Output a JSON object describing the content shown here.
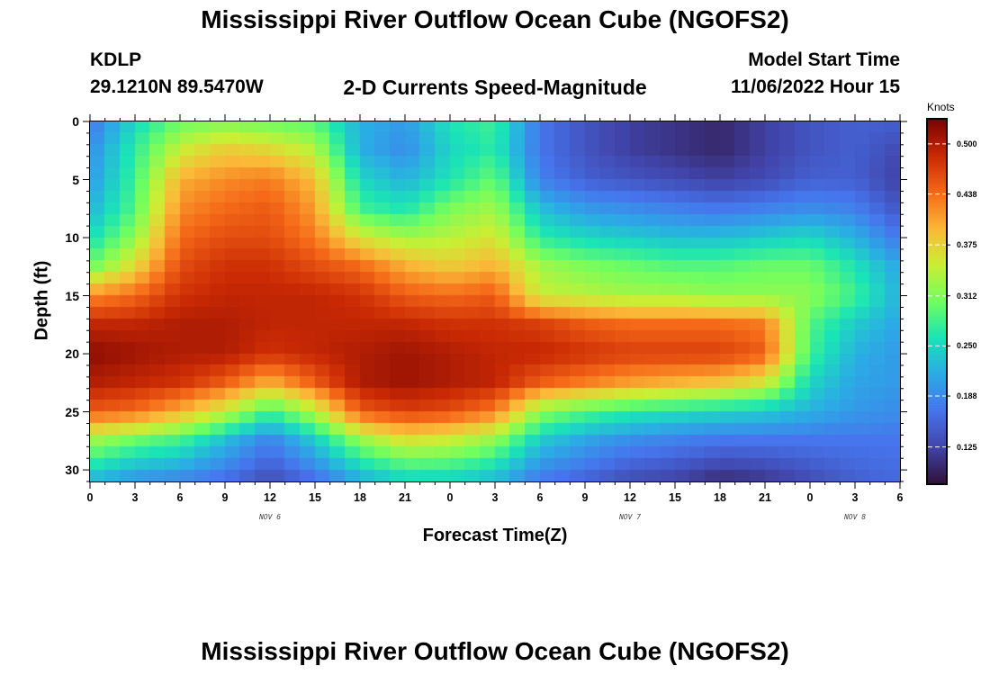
{
  "titles": {
    "top": "Mississippi River Outflow Ocean Cube (NGOFS2)",
    "bottom": "Mississippi River Outflow Ocean Cube (NGOFS2)"
  },
  "header": {
    "station": "KDLP",
    "location": "29.1210N  89.5470W",
    "subtitle": "2-D Currents Speed-Magnitude",
    "model_label": "Model Start Time",
    "model_time": "11/06/2022 Hour 15"
  },
  "chart_data": {
    "type": "heatmap",
    "title": "2-D Currents Speed-Magnitude",
    "xlabel": "Forecast Time(Z)",
    "ylabel": "Depth (ft)",
    "units": "Knots",
    "x_ticks": [
      "0",
      "3",
      "6",
      "9",
      "12",
      "15",
      "18",
      "21",
      "0",
      "3",
      "6",
      "9",
      "12",
      "15",
      "18",
      "21",
      "0",
      "3",
      "6"
    ],
    "y_ticks": [
      "0",
      "5",
      "10",
      "15",
      "20",
      "25",
      "30"
    ],
    "x_range_hours": [
      0,
      54
    ],
    "y_range_ft": [
      0,
      31
    ],
    "date_labels": [
      {
        "text": "NOV 6",
        "hour": 12
      },
      {
        "text": "NOV 7",
        "hour": 36
      },
      {
        "text": "NOV 8",
        "hour": 51
      }
    ],
    "colorbar": {
      "min": 0.08,
      "max": 0.53,
      "ticks": [
        "0.500",
        "0.438",
        "0.375",
        "0.312",
        "0.250",
        "0.188",
        "0.125"
      ]
    },
    "speed_grid_knots": {
      "depths_ft": [
        0,
        2.5,
        5,
        7.5,
        10,
        12.5,
        15,
        17.5,
        20,
        22.5,
        25,
        27.5,
        31
      ],
      "hours": [
        0,
        3,
        6,
        9,
        12,
        15,
        18,
        21,
        24,
        27,
        30,
        33,
        36,
        39,
        42,
        45,
        48,
        51,
        54
      ],
      "values": [
        [
          0.17,
          0.25,
          0.3,
          0.31,
          0.3,
          0.29,
          0.22,
          0.2,
          0.26,
          0.28,
          0.17,
          0.14,
          0.12,
          0.11,
          0.1,
          0.12,
          0.14,
          0.15,
          0.15
        ],
        [
          0.19,
          0.27,
          0.35,
          0.38,
          0.37,
          0.34,
          0.22,
          0.19,
          0.25,
          0.27,
          0.17,
          0.14,
          0.12,
          0.11,
          0.1,
          0.12,
          0.14,
          0.15,
          0.13
        ],
        [
          0.2,
          0.28,
          0.4,
          0.42,
          0.43,
          0.39,
          0.25,
          0.22,
          0.26,
          0.3,
          0.18,
          0.15,
          0.14,
          0.13,
          0.12,
          0.13,
          0.15,
          0.15,
          0.12
        ],
        [
          0.22,
          0.29,
          0.42,
          0.44,
          0.45,
          0.41,
          0.28,
          0.26,
          0.31,
          0.33,
          0.23,
          0.2,
          0.19,
          0.18,
          0.17,
          0.18,
          0.19,
          0.18,
          0.14
        ],
        [
          0.25,
          0.32,
          0.44,
          0.46,
          0.46,
          0.43,
          0.36,
          0.33,
          0.34,
          0.36,
          0.27,
          0.25,
          0.24,
          0.23,
          0.23,
          0.24,
          0.25,
          0.22,
          0.17
        ],
        [
          0.3,
          0.37,
          0.46,
          0.48,
          0.48,
          0.46,
          0.44,
          0.4,
          0.38,
          0.4,
          0.33,
          0.31,
          0.3,
          0.29,
          0.29,
          0.3,
          0.3,
          0.26,
          0.21
        ],
        [
          0.42,
          0.44,
          0.48,
          0.49,
          0.49,
          0.49,
          0.48,
          0.45,
          0.44,
          0.45,
          0.35,
          0.34,
          0.33,
          0.33,
          0.32,
          0.32,
          0.32,
          0.28,
          0.22
        ],
        [
          0.49,
          0.49,
          0.5,
          0.5,
          0.49,
          0.49,
          0.49,
          0.49,
          0.48,
          0.48,
          0.47,
          0.45,
          0.44,
          0.44,
          0.44,
          0.43,
          0.29,
          0.24,
          0.21
        ],
        [
          0.52,
          0.51,
          0.5,
          0.5,
          0.48,
          0.49,
          0.5,
          0.51,
          0.5,
          0.49,
          0.49,
          0.48,
          0.47,
          0.47,
          0.47,
          0.45,
          0.28,
          0.22,
          0.2
        ],
        [
          0.5,
          0.49,
          0.48,
          0.45,
          0.4,
          0.45,
          0.5,
          0.51,
          0.5,
          0.49,
          0.45,
          0.43,
          0.41,
          0.4,
          0.39,
          0.36,
          0.25,
          0.21,
          0.2
        ],
        [
          0.45,
          0.44,
          0.4,
          0.35,
          0.28,
          0.34,
          0.45,
          0.47,
          0.46,
          0.43,
          0.32,
          0.29,
          0.27,
          0.26,
          0.25,
          0.24,
          0.22,
          0.2,
          0.19
        ],
        [
          0.33,
          0.3,
          0.28,
          0.23,
          0.18,
          0.24,
          0.32,
          0.36,
          0.35,
          0.32,
          0.24,
          0.21,
          0.19,
          0.18,
          0.17,
          0.17,
          0.17,
          0.17,
          0.17
        ],
        [
          0.22,
          0.19,
          0.18,
          0.16,
          0.13,
          0.16,
          0.21,
          0.24,
          0.24,
          0.22,
          0.17,
          0.15,
          0.13,
          0.12,
          0.1,
          0.11,
          0.13,
          0.15,
          0.16
        ]
      ]
    }
  }
}
